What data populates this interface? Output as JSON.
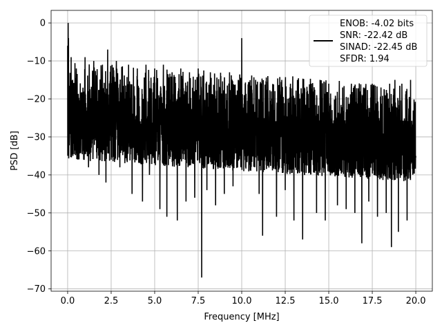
{
  "chart_data": {
    "type": "line",
    "title": "",
    "xlabel": "Frequency [MHz]",
    "ylabel": "PSD [dB]",
    "xlim": [
      -0.95,
      20.95
    ],
    "ylim": [
      -70.6,
      3.3
    ],
    "grid": true,
    "xticks": [
      0.0,
      2.5,
      5.0,
      7.5,
      10.0,
      12.5,
      15.0,
      17.5,
      20.0
    ],
    "xtick_labels": [
      "0.0",
      "2.5",
      "5.0",
      "7.5",
      "10.0",
      "12.5",
      "15.0",
      "17.5",
      "20.0"
    ],
    "yticks": [
      0,
      -10,
      -20,
      -30,
      -40,
      -50,
      -60,
      -70
    ],
    "ytick_labels": [
      "0",
      "−10",
      "−20",
      "−30",
      "−40",
      "−50",
      "−60",
      "−70"
    ],
    "line_color": "#000000",
    "legend": {
      "placement": "upper right",
      "entries": [
        "ENOB: -4.02 bits",
        "SNR: -22.42 dB",
        "SINAD: -22.45 dB",
        "SFDR: 1.94"
      ]
    },
    "series": [
      {
        "x": [
          0.0,
          0.03,
          0.05,
          0.1,
          0.2,
          0.3,
          0.5,
          0.7,
          1.0,
          1.2,
          1.5,
          1.8,
          2.0,
          2.2,
          2.3,
          2.5,
          2.8,
          3.0,
          3.5,
          3.7,
          4.0,
          4.3,
          4.5,
          4.7,
          5.0,
          5.3,
          5.5,
          5.7,
          6.0,
          6.3,
          6.5,
          6.8,
          7.0,
          7.3,
          7.5,
          7.7,
          7.8,
          8.0,
          8.2,
          8.5,
          8.8,
          9.0,
          9.3,
          9.5,
          9.8,
          9.9,
          10.0,
          10.05,
          10.2,
          10.5,
          10.8,
          11.0,
          11.2,
          11.5,
          12.0,
          12.3,
          12.5,
          12.8,
          13.0,
          13.2,
          13.5,
          14.0,
          14.3,
          14.5,
          14.8,
          15.0,
          15.5,
          15.8,
          16.0,
          16.3,
          16.5,
          16.9,
          17.0,
          17.3,
          17.5,
          17.8,
          18.0,
          18.3,
          18.5,
          18.6,
          18.8,
          19.0,
          19.2,
          19.5,
          19.7,
          20.0
        ],
        "y": [
          -6,
          0,
          -4,
          -30,
          -9,
          -35,
          -12,
          -33,
          -9,
          -38,
          -10,
          -40,
          -11,
          -42,
          -7,
          -36,
          -10,
          -38,
          -11,
          -45,
          -12,
          -47,
          -11,
          -40,
          -12,
          -49,
          -11,
          -51,
          -13,
          -52,
          -12,
          -47,
          -13,
          -46,
          -12,
          -67,
          -14,
          -44,
          -13,
          -48,
          -14,
          -45,
          -13,
          -43,
          -15,
          -35,
          -4,
          -28,
          -16,
          -37,
          -15,
          -45,
          -56,
          -14,
          -51,
          -15,
          -44,
          -16,
          -52,
          -15,
          -57,
          -16,
          -50,
          -15,
          -52,
          -16,
          -48,
          -17,
          -49,
          -16,
          -50,
          -58,
          -17,
          -47,
          -16,
          -51,
          -17,
          -50,
          -16,
          -59,
          -15,
          -55,
          -16,
          -52,
          -15,
          -35
        ]
      }
    ]
  }
}
